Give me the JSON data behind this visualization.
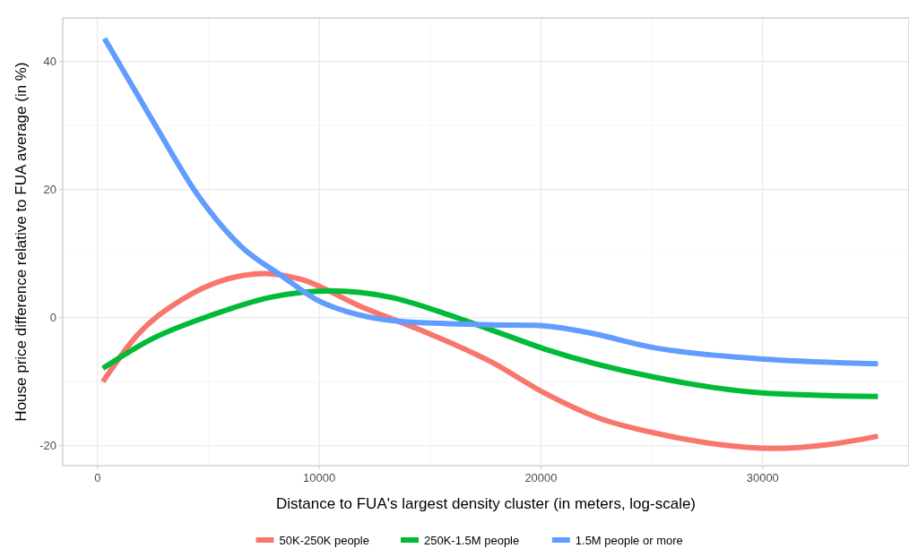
{
  "chart_data": {
    "type": "line",
    "xlabel": "Distance to FUA's largest density cluster (in meters, log-scale)",
    "ylabel": "House price difference relative to FUA average (in %)",
    "xlim": [
      -1570,
      36600
    ],
    "ylim": [
      -23.1,
      46.8
    ],
    "xticks": [
      0,
      10000,
      20000,
      30000
    ],
    "yticks": [
      -20,
      0,
      20,
      40
    ],
    "grid": true,
    "legend": "bottom",
    "line_style": "solid",
    "marker": "none",
    "series": [
      {
        "name": "50K-250K people",
        "color": "#f8766d",
        "x": [
          240,
          1770,
          3790,
          5800,
          7560,
          9170,
          11840,
          14540,
          17760,
          20180,
          22710,
          25130,
          27830,
          30530,
          33190,
          35200
        ],
        "values": [
          -10.0,
          -2.8,
          2.8,
          6.0,
          6.9,
          6.0,
          1.8,
          -1.9,
          -6.9,
          -11.8,
          -15.8,
          -18.0,
          -19.7,
          -20.4,
          -19.7,
          -18.5
        ]
      },
      {
        "name": "250K-1.5M people",
        "color": "#00ba38",
        "x": [
          240,
          2460,
          5140,
          7820,
          10510,
          13200,
          15880,
          17760,
          20180,
          25130,
          30250,
          35200
        ],
        "values": [
          -7.9,
          -3.3,
          0.4,
          3.2,
          4.2,
          3.2,
          0.4,
          -1.9,
          -4.9,
          -9.3,
          -11.8,
          -12.3
        ]
      },
      {
        "name": "1.5M people or more",
        "color": "#619cff",
        "x": [
          310,
          2460,
          4470,
          6480,
          8360,
          9830,
          11840,
          13730,
          17760,
          19770,
          21790,
          25130,
          30250,
          35200
        ],
        "values": [
          43.6,
          30.9,
          19.4,
          11.1,
          6.4,
          2.9,
          0.4,
          -0.6,
          -1.1,
          -1.2,
          -2.1,
          -4.7,
          -6.5,
          -7.2
        ]
      }
    ]
  }
}
